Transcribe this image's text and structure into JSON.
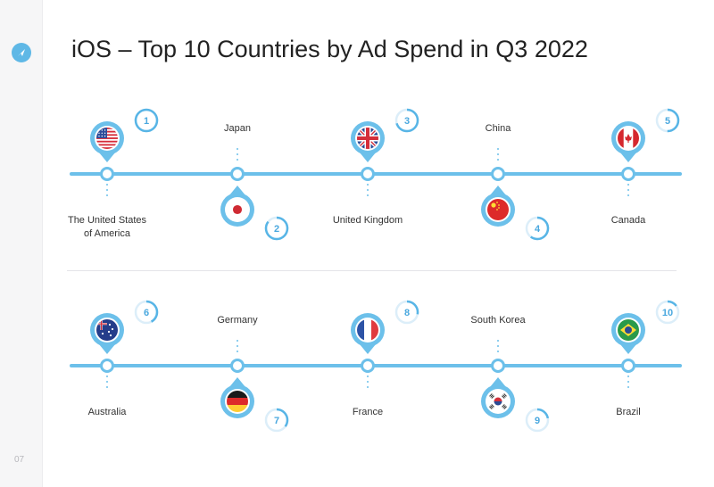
{
  "title": "iOS – Top 10 Countries by Ad Spend in Q3 2022",
  "page_number": "07",
  "colors": {
    "timeline": "#6cc0ea",
    "ring_light": "#dceef9",
    "ring_accent": "#58b5e6",
    "rank_text": "#4aa8df"
  },
  "rows": [
    {
      "countries": [
        {
          "rank": "1",
          "name": "The United States of America",
          "name_line1": "The United States",
          "name_line2": "of America",
          "flag": "usa-flag-icon",
          "rank_fraction": 1.0
        },
        {
          "rank": "2",
          "name": "Japan",
          "name_line1": "Japan",
          "name_line2": "",
          "flag": "japan-flag-icon",
          "rank_fraction": 0.85
        },
        {
          "rank": "3",
          "name": "United Kingdom",
          "name_line1": "United Kingdom",
          "name_line2": "",
          "flag": "uk-flag-icon",
          "rank_fraction": 0.7
        },
        {
          "rank": "4",
          "name": "China",
          "name_line1": "China",
          "name_line2": "",
          "flag": "china-flag-icon",
          "rank_fraction": 0.6
        },
        {
          "rank": "5",
          "name": "Canada",
          "name_line1": "Canada",
          "name_line2": "",
          "flag": "canada-flag-icon",
          "rank_fraction": 0.5
        }
      ]
    },
    {
      "countries": [
        {
          "rank": "6",
          "name": "Australia",
          "name_line1": "Australia",
          "name_line2": "",
          "flag": "australia-flag-icon",
          "rank_fraction": 0.42
        },
        {
          "rank": "7",
          "name": "Germany",
          "name_line1": "Germany",
          "name_line2": "",
          "flag": "germany-flag-icon",
          "rank_fraction": 0.35
        },
        {
          "rank": "8",
          "name": "France",
          "name_line1": "France",
          "name_line2": "",
          "flag": "france-flag-icon",
          "rank_fraction": 0.28
        },
        {
          "rank": "9",
          "name": "South Korea",
          "name_line1": "South Korea",
          "name_line2": "",
          "flag": "south-korea-flag-icon",
          "rank_fraction": 0.22
        },
        {
          "rank": "10",
          "name": "Brazil",
          "name_line1": "Brazil",
          "name_line2": "",
          "flag": "brazil-flag-icon",
          "rank_fraction": 0.15
        }
      ]
    }
  ]
}
